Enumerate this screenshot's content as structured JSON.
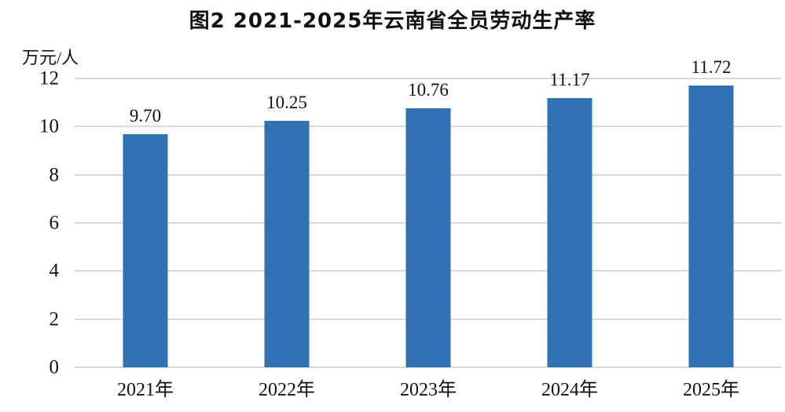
{
  "title": "图2 2021-2025年云南省全员劳动生产率",
  "chart_data": {
    "type": "bar",
    "title": "图2 2021-2025年云南省全员劳动生产率",
    "unit_label": "万元/人",
    "categories": [
      "2021年",
      "2022年",
      "2023年",
      "2024年",
      "2025年"
    ],
    "values": [
      9.7,
      10.25,
      10.76,
      11.17,
      11.72
    ],
    "value_labels": [
      "9.70",
      "10.25",
      "10.76",
      "11.17",
      "11.72"
    ],
    "xlabel": "",
    "ylabel": "万元/人",
    "ylim": [
      0,
      12
    ],
    "yticks": [
      0,
      2,
      4,
      6,
      8,
      10,
      12
    ],
    "grid": true,
    "legend": "none",
    "bar_color": "#3070B5",
    "gridline_color": "#D9D9D9",
    "text_color": "#111111"
  }
}
